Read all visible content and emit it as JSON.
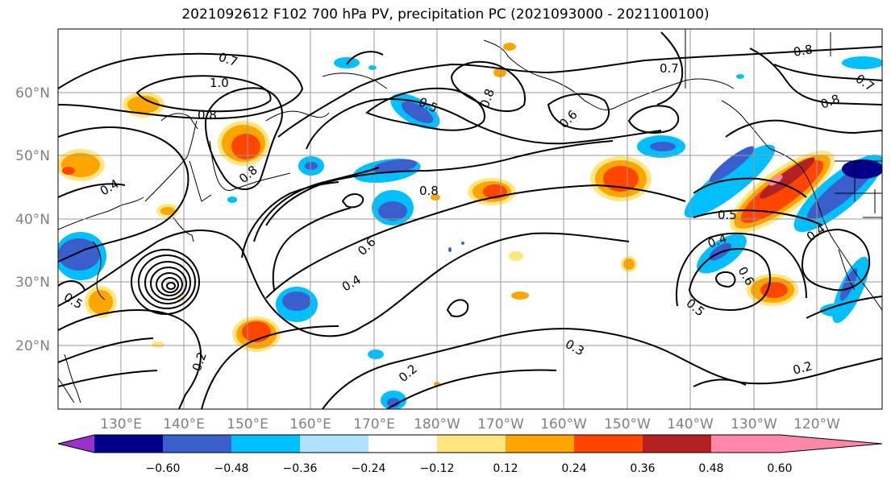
{
  "title": "2021092612 F102 700 hPa PV, precipitation PC (2021093000 - 2021100100)",
  "lat_labels": [
    "60°N",
    "50°N",
    "40°N",
    "30°N",
    "20°N"
  ],
  "lon_labels": [
    "130°E",
    "140°E",
    "150°E",
    "160°E",
    "170°E",
    "180°W",
    "170°W",
    "160°W",
    "150°W",
    "140°W",
    "130°W",
    "120°W"
  ],
  "colorbar": {
    "ticks": [
      "−0.60",
      "−0.48",
      "−0.36",
      "−0.24",
      "−0.12",
      "0.12",
      "0.24",
      "0.36",
      "0.48",
      "0.60"
    ],
    "colors": [
      "#9932cc",
      "#00008b",
      "#3a5fcd",
      "#00bfff",
      "#b0e2ff",
      "#ffffff",
      "#ffe680",
      "#ffa500",
      "#ff4500",
      "#b22222",
      "#ff88aa"
    ]
  },
  "contour_labels": [
    "0.7",
    "1.0",
    "0.8",
    "0.5",
    "0.8",
    "0.6",
    "0.7",
    "0.8",
    "0.4",
    "0.8",
    "0.6",
    "0.5",
    "0.4",
    "0.5",
    "0.4",
    "0.6",
    "0.5",
    "0.4",
    "0.2",
    "0.2",
    "0.3",
    "0.2",
    "0.8",
    "0.7",
    "0.8"
  ]
}
